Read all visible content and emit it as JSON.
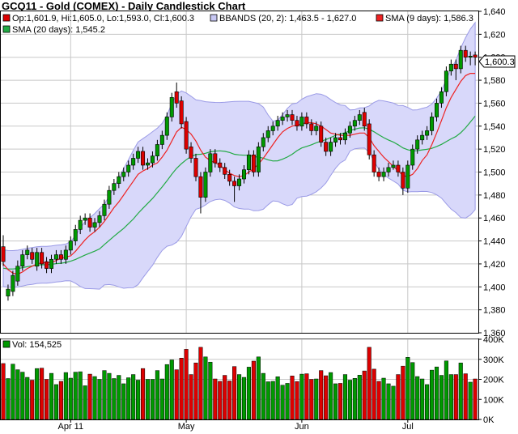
{
  "title": "GCQ11 - Gold (COMEX) - Daily Candlestick Chart",
  "price_panel": {
    "ohlc_label": "Op:1,601.9, Hi:1,605.0, Lo:1,593.0, Cl:1,600.3",
    "bbands_label": "BBANDS (20, 2): 1,463.5 - 1,627.0",
    "sma9_label": "SMA (9 days): 1,586.3",
    "sma20_label": "SMA (20 days): 1,545.2",
    "last_price_label": "1,600.3"
  },
  "volume_panel": {
    "vol_label": "Vol: 154,525"
  },
  "colors": {
    "up": "#009900",
    "down": "#dd0000",
    "bband_fill": "#d8d8fa",
    "bband_line": "#9a9ae6",
    "sma9": "#ee2222",
    "sma20": "#22aa44",
    "grid": "#c8c8c8"
  },
  "chart_data": {
    "type": "candlestick",
    "title": "GCQ11 - Gold (COMEX) - Daily Candlestick Chart",
    "x_tick_labels": [
      "Apr 11",
      "May",
      "Jun",
      "Jul"
    ],
    "x_tick_index": [
      14,
      38,
      62,
      84
    ],
    "price_axis": {
      "min": 1360,
      "max": 1640,
      "step": 20,
      "tick_labels": [
        "1,360",
        "1,380",
        "1,400",
        "1,420",
        "1,440",
        "1,460",
        "1,480",
        "1,500",
        "1,520",
        "1,540",
        "1,560",
        "1,580",
        "1,600",
        "1,620",
        "1,640"
      ]
    },
    "volume_axis": {
      "min": 0,
      "max": 400000,
      "step": 100000,
      "tick_labels": [
        "0K",
        "100K",
        "200K",
        "300K",
        "400K"
      ]
    },
    "close": [
      1422,
      1398,
      1410,
      1418,
      1428,
      1432,
      1424,
      1430,
      1420,
      1416,
      1424,
      1428,
      1424,
      1432,
      1440,
      1450,
      1458,
      1460,
      1452,
      1456,
      1462,
      1472,
      1484,
      1490,
      1496,
      1500,
      1506,
      1512,
      1518,
      1506,
      1508,
      1514,
      1524,
      1532,
      1548,
      1565,
      1560,
      1542,
      1520,
      1512,
      1496,
      1478,
      1500,
      1516,
      1508,
      1504,
      1498,
      1492,
      1488,
      1494,
      1502,
      1515,
      1500,
      1522,
      1530,
      1536,
      1540,
      1545,
      1548,
      1550,
      1545,
      1540,
      1548,
      1542,
      1536,
      1540,
      1526,
      1518,
      1526,
      1530,
      1528,
      1534,
      1540,
      1545,
      1550,
      1540,
      1515,
      1500,
      1496,
      1500,
      1504,
      1506,
      1500,
      1486,
      1506,
      1520,
      1528,
      1532,
      1536,
      1548,
      1560,
      1570,
      1588,
      1594,
      1590,
      1606,
      1600,
      1601,
      1600
    ],
    "open": [
      1435,
      1392,
      1396,
      1405,
      1418,
      1428,
      1430,
      1418,
      1430,
      1422,
      1416,
      1424,
      1428,
      1424,
      1432,
      1440,
      1450,
      1458,
      1460,
      1452,
      1456,
      1462,
      1472,
      1484,
      1490,
      1496,
      1500,
      1506,
      1512,
      1518,
      1506,
      1508,
      1514,
      1524,
      1532,
      1548,
      1570,
      1562,
      1544,
      1522,
      1512,
      1496,
      1478,
      1500,
      1516,
      1508,
      1504,
      1498,
      1492,
      1488,
      1494,
      1502,
      1515,
      1500,
      1522,
      1530,
      1536,
      1540,
      1545,
      1548,
      1550,
      1545,
      1540,
      1548,
      1542,
      1536,
      1540,
      1526,
      1518,
      1526,
      1530,
      1528,
      1534,
      1540,
      1545,
      1552,
      1542,
      1515,
      1500,
      1496,
      1500,
      1504,
      1506,
      1500,
      1486,
      1506,
      1520,
      1528,
      1532,
      1536,
      1548,
      1560,
      1570,
      1588,
      1594,
      1590,
      1606,
      1600,
      1602
    ],
    "high": [
      1445,
      1402,
      1414,
      1423,
      1432,
      1436,
      1434,
      1434,
      1434,
      1426,
      1428,
      1432,
      1432,
      1436,
      1444,
      1454,
      1462,
      1464,
      1464,
      1460,
      1466,
      1476,
      1488,
      1494,
      1500,
      1504,
      1510,
      1516,
      1522,
      1522,
      1512,
      1518,
      1528,
      1536,
      1552,
      1569,
      1578,
      1566,
      1548,
      1526,
      1516,
      1500,
      1504,
      1520,
      1520,
      1512,
      1508,
      1502,
      1496,
      1498,
      1506,
      1519,
      1519,
      1526,
      1534,
      1540,
      1544,
      1549,
      1552,
      1554,
      1554,
      1549,
      1552,
      1552,
      1546,
      1544,
      1544,
      1530,
      1530,
      1534,
      1534,
      1538,
      1544,
      1549,
      1554,
      1556,
      1546,
      1519,
      1504,
      1504,
      1508,
      1510,
      1510,
      1504,
      1510,
      1524,
      1532,
      1536,
      1540,
      1552,
      1564,
      1574,
      1592,
      1598,
      1598,
      1610,
      1610,
      1605,
      1605
    ],
    "low": [
      1418,
      1388,
      1392,
      1401,
      1414,
      1424,
      1420,
      1414,
      1416,
      1412,
      1412,
      1420,
      1420,
      1420,
      1428,
      1436,
      1446,
      1454,
      1448,
      1448,
      1452,
      1458,
      1468,
      1480,
      1486,
      1492,
      1496,
      1502,
      1508,
      1502,
      1502,
      1504,
      1510,
      1520,
      1528,
      1544,
      1556,
      1538,
      1516,
      1508,
      1492,
      1464,
      1474,
      1496,
      1504,
      1500,
      1494,
      1488,
      1474,
      1484,
      1490,
      1498,
      1496,
      1496,
      1518,
      1526,
      1532,
      1536,
      1541,
      1544,
      1541,
      1536,
      1536,
      1538,
      1532,
      1532,
      1522,
      1514,
      1514,
      1522,
      1524,
      1524,
      1530,
      1536,
      1541,
      1536,
      1511,
      1496,
      1492,
      1492,
      1496,
      1502,
      1496,
      1480,
      1482,
      1502,
      1516,
      1524,
      1528,
      1532,
      1544,
      1556,
      1566,
      1584,
      1580,
      1586,
      1596,
      1593,
      1593
    ],
    "sma9": [
      1420,
      1415,
      1412,
      1411,
      1413,
      1416,
      1418,
      1420,
      1421,
      1421,
      1421,
      1423,
      1425,
      1426,
      1427,
      1431,
      1436,
      1441,
      1445,
      1448,
      1452,
      1457,
      1463,
      1469,
      1474,
      1480,
      1486,
      1492,
      1498,
      1501,
      1503,
      1506,
      1508,
      1513,
      1519,
      1527,
      1535,
      1539,
      1537,
      1533,
      1527,
      1519,
      1513,
      1510,
      1508,
      1506,
      1502,
      1499,
      1497,
      1496,
      1497,
      1500,
      1503,
      1507,
      1512,
      1518,
      1524,
      1530,
      1535,
      1538,
      1540,
      1541,
      1542,
      1543,
      1543,
      1542,
      1540,
      1537,
      1534,
      1533,
      1532,
      1532,
      1532,
      1533,
      1534,
      1534,
      1530,
      1523,
      1518,
      1513,
      1509,
      1505,
      1501,
      1497,
      1496,
      1498,
      1503,
      1510,
      1515,
      1524,
      1534,
      1545,
      1556,
      1565,
      1572,
      1579,
      1584,
      1586,
      1586
    ]
  }
}
